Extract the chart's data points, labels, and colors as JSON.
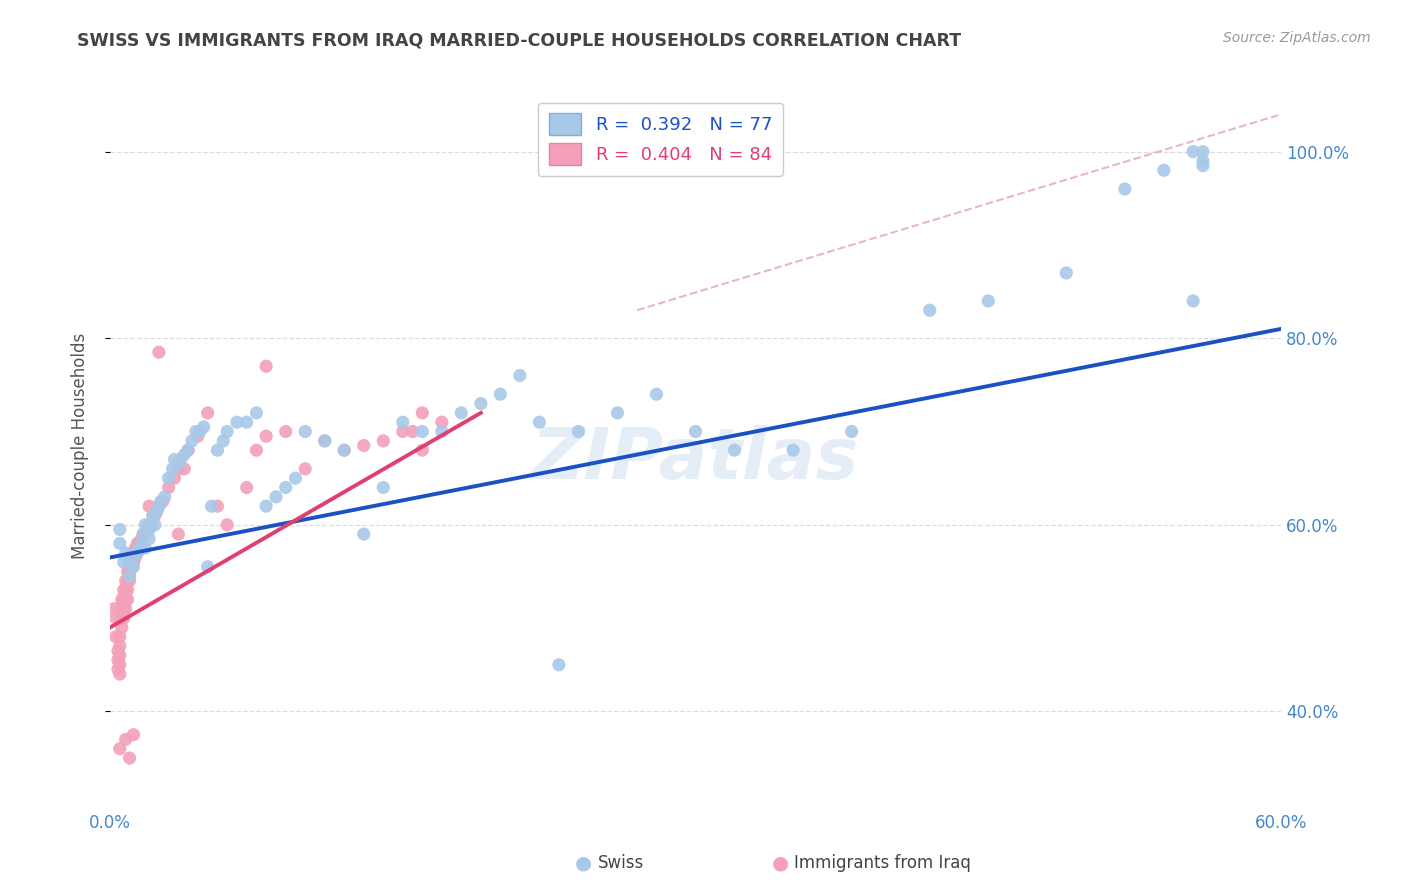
{
  "title": "SWISS VS IMMIGRANTS FROM IRAQ MARRIED-COUPLE HOUSEHOLDS CORRELATION CHART",
  "source": "Source: ZipAtlas.com",
  "ylabel": "Married-couple Households",
  "xlim": [
    0.0,
    0.6
  ],
  "ylim": [
    0.3,
    1.07
  ],
  "y_ticks": [
    0.4,
    0.6,
    0.8,
    1.0
  ],
  "y_tick_labels": [
    "40.0%",
    "60.0%",
    "80.0%",
    "100.0%"
  ],
  "x_ticks": [
    0.0,
    0.1,
    0.2,
    0.3,
    0.4,
    0.5,
    0.6
  ],
  "x_tick_labels": [
    "0.0%",
    "",
    "",
    "",
    "",
    "",
    "60.0%"
  ],
  "watermark": "ZIPatlas",
  "swiss_color": "#a8c8e8",
  "iraq_color": "#f4a0b8",
  "swiss_line_color": "#1a52c4",
  "iraq_line_color": "#e04070",
  "diag_line_color": "#e0a0b0",
  "swiss_R": 0.392,
  "swiss_N": 77,
  "iraq_R": 0.404,
  "iraq_N": 84,
  "swiss_x": [
    0.005,
    0.005,
    0.007,
    0.008,
    0.01,
    0.01,
    0.012,
    0.012,
    0.014,
    0.015,
    0.016,
    0.017,
    0.018,
    0.018,
    0.02,
    0.02,
    0.021,
    0.022,
    0.023,
    0.024,
    0.025,
    0.026,
    0.028,
    0.03,
    0.032,
    0.033,
    0.035,
    0.036,
    0.038,
    0.04,
    0.042,
    0.044,
    0.046,
    0.048,
    0.05,
    0.052,
    0.055,
    0.058,
    0.06,
    0.065,
    0.07,
    0.075,
    0.08,
    0.085,
    0.09,
    0.095,
    0.1,
    0.11,
    0.12,
    0.13,
    0.14,
    0.15,
    0.16,
    0.17,
    0.18,
    0.19,
    0.2,
    0.21,
    0.22,
    0.23,
    0.24,
    0.26,
    0.28,
    0.3,
    0.32,
    0.35,
    0.38,
    0.42,
    0.45,
    0.49,
    0.52,
    0.54,
    0.555,
    0.56,
    0.56,
    0.56,
    0.555
  ],
  "swiss_y": [
    0.58,
    0.595,
    0.56,
    0.57,
    0.545,
    0.56,
    0.555,
    0.565,
    0.57,
    0.575,
    0.58,
    0.59,
    0.575,
    0.6,
    0.585,
    0.595,
    0.6,
    0.61,
    0.6,
    0.615,
    0.62,
    0.625,
    0.63,
    0.65,
    0.66,
    0.67,
    0.665,
    0.67,
    0.675,
    0.68,
    0.69,
    0.7,
    0.7,
    0.705,
    0.555,
    0.62,
    0.68,
    0.69,
    0.7,
    0.71,
    0.71,
    0.72,
    0.62,
    0.63,
    0.64,
    0.65,
    0.7,
    0.69,
    0.68,
    0.59,
    0.64,
    0.71,
    0.7,
    0.7,
    0.72,
    0.73,
    0.74,
    0.76,
    0.71,
    0.45,
    0.7,
    0.72,
    0.74,
    0.7,
    0.68,
    0.68,
    0.7,
    0.83,
    0.84,
    0.87,
    0.96,
    0.98,
    1.0,
    1.0,
    0.99,
    0.985,
    0.84
  ],
  "iraq_x": [
    0.002,
    0.003,
    0.003,
    0.004,
    0.004,
    0.004,
    0.005,
    0.005,
    0.005,
    0.005,
    0.005,
    0.006,
    0.006,
    0.006,
    0.006,
    0.007,
    0.007,
    0.007,
    0.007,
    0.008,
    0.008,
    0.008,
    0.008,
    0.009,
    0.009,
    0.009,
    0.009,
    0.01,
    0.01,
    0.01,
    0.01,
    0.01,
    0.011,
    0.011,
    0.012,
    0.012,
    0.013,
    0.013,
    0.014,
    0.014,
    0.015,
    0.015,
    0.016,
    0.017,
    0.018,
    0.019,
    0.02,
    0.021,
    0.022,
    0.023,
    0.024,
    0.025,
    0.027,
    0.03,
    0.033,
    0.035,
    0.038,
    0.04,
    0.045,
    0.05,
    0.055,
    0.06,
    0.07,
    0.075,
    0.08,
    0.09,
    0.1,
    0.11,
    0.12,
    0.13,
    0.14,
    0.15,
    0.155,
    0.16,
    0.16,
    0.17,
    0.08,
    0.025,
    0.01,
    0.005,
    0.008,
    0.012,
    0.02,
    0.035
  ],
  "iraq_y": [
    0.51,
    0.48,
    0.5,
    0.445,
    0.455,
    0.465,
    0.44,
    0.45,
    0.46,
    0.47,
    0.48,
    0.49,
    0.5,
    0.51,
    0.52,
    0.5,
    0.51,
    0.52,
    0.53,
    0.51,
    0.52,
    0.53,
    0.54,
    0.52,
    0.53,
    0.54,
    0.55,
    0.54,
    0.55,
    0.555,
    0.56,
    0.565,
    0.555,
    0.56,
    0.56,
    0.57,
    0.565,
    0.575,
    0.57,
    0.58,
    0.575,
    0.58,
    0.585,
    0.59,
    0.59,
    0.595,
    0.6,
    0.6,
    0.61,
    0.61,
    0.615,
    0.62,
    0.625,
    0.64,
    0.65,
    0.66,
    0.66,
    0.68,
    0.695,
    0.72,
    0.62,
    0.6,
    0.64,
    0.68,
    0.695,
    0.7,
    0.66,
    0.69,
    0.68,
    0.685,
    0.69,
    0.7,
    0.7,
    0.72,
    0.68,
    0.71,
    0.77,
    0.785,
    0.35,
    0.36,
    0.37,
    0.375,
    0.62,
    0.59
  ],
  "swiss_line_x": [
    0.0,
    0.6
  ],
  "swiss_line_y": [
    0.565,
    0.81
  ],
  "iraq_line_x": [
    0.0,
    0.19
  ],
  "iraq_line_y": [
    0.49,
    0.72
  ],
  "diag_line_x": [
    0.27,
    0.6
  ],
  "diag_line_y": [
    0.83,
    1.04
  ],
  "background_color": "#ffffff",
  "grid_color": "#dddddd",
  "title_color": "#444444",
  "axis_color": "#4488cc",
  "source_color": "#999999"
}
